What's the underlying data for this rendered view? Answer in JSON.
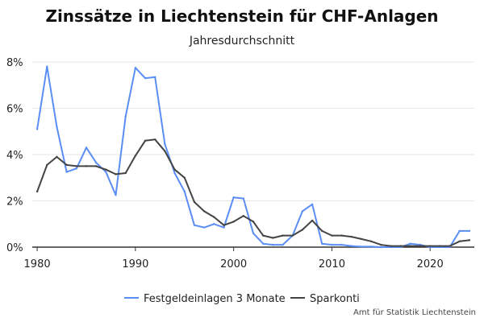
{
  "chart_data": {
    "type": "line",
    "title": "Zinssätze in Liechtenstein für CHF-Anlagen",
    "subtitle": "Jahresdurchschnitt",
    "xlabel": "",
    "ylabel": "",
    "xlim": [
      1979.5,
      2024.5
    ],
    "ylim": [
      0,
      8
    ],
    "x_ticks": [
      1980,
      1990,
      2000,
      2010,
      2020
    ],
    "x_tick_labels": [
      "1980",
      "1990",
      "2000",
      "2010",
      "2020"
    ],
    "y_ticks": [
      0,
      2,
      4,
      6,
      8
    ],
    "y_tick_labels": [
      "0%",
      "2%",
      "4%",
      "6%",
      "8%"
    ],
    "grid": true,
    "legend_position": "bottom",
    "x": [
      1980,
      1981,
      1982,
      1983,
      1984,
      1985,
      1986,
      1987,
      1988,
      1989,
      1990,
      1991,
      1992,
      1993,
      1994,
      1995,
      1996,
      1997,
      1998,
      1999,
      2000,
      2001,
      2002,
      2003,
      2004,
      2005,
      2006,
      2007,
      2008,
      2009,
      2010,
      2011,
      2012,
      2013,
      2014,
      2015,
      2016,
      2017,
      2018,
      2019,
      2020,
      2021,
      2022,
      2023,
      2024
    ],
    "series": [
      {
        "name": "Festgeldeinlagen 3 Monate",
        "color": "#5b8ef5",
        "values": [
          5.1,
          7.8,
          5.2,
          3.25,
          3.4,
          4.3,
          3.65,
          3.25,
          2.25,
          5.65,
          7.75,
          7.3,
          7.35,
          4.45,
          3.2,
          2.4,
          0.95,
          0.85,
          1.0,
          0.85,
          2.15,
          2.1,
          0.6,
          0.15,
          0.1,
          0.1,
          0.5,
          1.55,
          1.85,
          0.15,
          0.1,
          0.1,
          0.05,
          0.02,
          0.02,
          0.0,
          0.0,
          0.0,
          0.15,
          0.1,
          0.0,
          0.0,
          0.0,
          0.7,
          0.7
        ]
      },
      {
        "name": "Sparkonti",
        "color": "#444444",
        "values": [
          2.4,
          3.55,
          3.9,
          3.55,
          3.5,
          3.5,
          3.5,
          3.35,
          3.15,
          3.2,
          3.95,
          4.6,
          4.65,
          4.15,
          3.35,
          3.0,
          1.95,
          1.55,
          1.3,
          0.95,
          1.1,
          1.35,
          1.1,
          0.5,
          0.4,
          0.5,
          0.5,
          0.75,
          1.15,
          0.7,
          0.5,
          0.5,
          0.45,
          0.35,
          0.25,
          0.1,
          0.05,
          0.05,
          0.05,
          0.05,
          0.05,
          0.05,
          0.05,
          0.25,
          0.3
        ]
      }
    ]
  },
  "source_note": "Amt für Statistik Liechtenstein"
}
